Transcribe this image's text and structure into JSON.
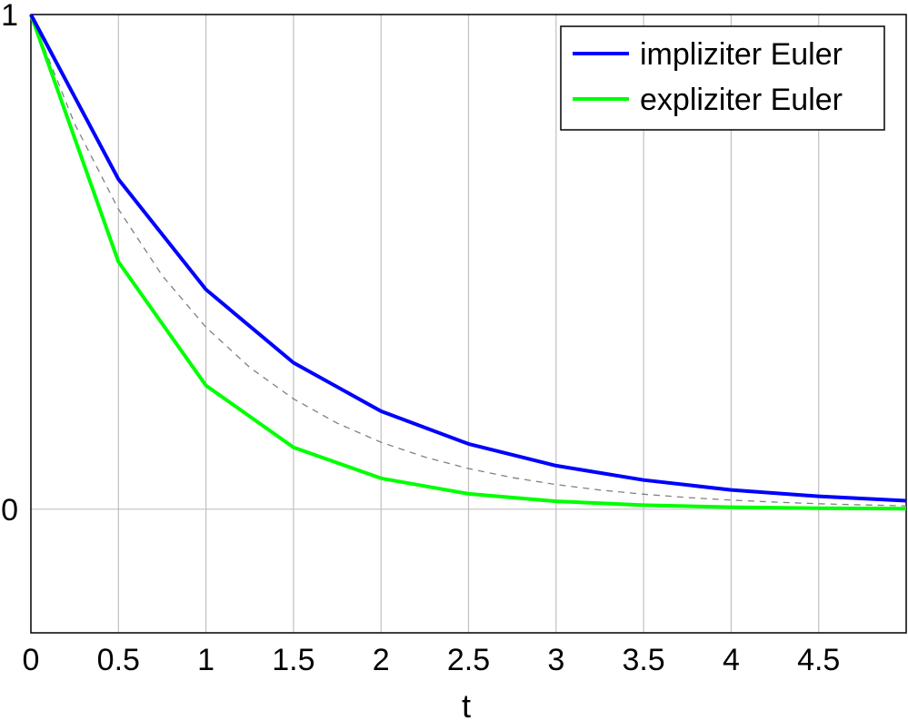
{
  "chart_data": {
    "type": "line",
    "xlabel": "t",
    "ylabel": "",
    "xlim": [
      0,
      5
    ],
    "ylim": [
      -0.25,
      1
    ],
    "grid": true,
    "legend_position": "top-right",
    "x_ticks": [
      "0",
      "0.5",
      "1",
      "1.5",
      "2",
      "2.5",
      "3",
      "3.5",
      "4",
      "4.5"
    ],
    "x_tick_values": [
      0,
      0.5,
      1,
      1.5,
      2,
      2.5,
      3,
      3.5,
      4,
      4.5
    ],
    "y_ticks": [
      "0",
      "1"
    ],
    "y_tick_values": [
      0,
      1
    ],
    "series": [
      {
        "name": "impliziter Euler",
        "color": "#0000ff",
        "style": "solid",
        "x": [
          0,
          0.5,
          1,
          1.5,
          2,
          2.5,
          3,
          3.5,
          4,
          4.5,
          5
        ],
        "y": [
          1,
          0.667,
          0.444,
          0.296,
          0.198,
          0.132,
          0.088,
          0.059,
          0.039,
          0.026,
          0.017
        ]
      },
      {
        "name": "expliziter Euler",
        "color": "#00ff00",
        "style": "solid",
        "x": [
          0,
          0.5,
          1,
          1.5,
          2,
          2.5,
          3,
          3.5,
          4,
          4.5,
          5
        ],
        "y": [
          1,
          0.5,
          0.25,
          0.125,
          0.0625,
          0.031,
          0.016,
          0.008,
          0.004,
          0.002,
          0.001
        ]
      },
      {
        "color": "#808080",
        "style": "dashed",
        "x": [
          0,
          0.25,
          0.5,
          0.75,
          1,
          1.25,
          1.5,
          1.75,
          2,
          2.25,
          2.5,
          2.75,
          3,
          3.25,
          3.5,
          3.75,
          4,
          4.25,
          4.5,
          4.75,
          5
        ],
        "y": [
          1,
          0.7788,
          0.6065,
          0.4724,
          0.3679,
          0.2865,
          0.2231,
          0.1738,
          0.1353,
          0.1054,
          0.0821,
          0.0639,
          0.0498,
          0.0388,
          0.0302,
          0.0235,
          0.0183,
          0.0143,
          0.0111,
          0.0087,
          0.0067
        ]
      }
    ]
  }
}
